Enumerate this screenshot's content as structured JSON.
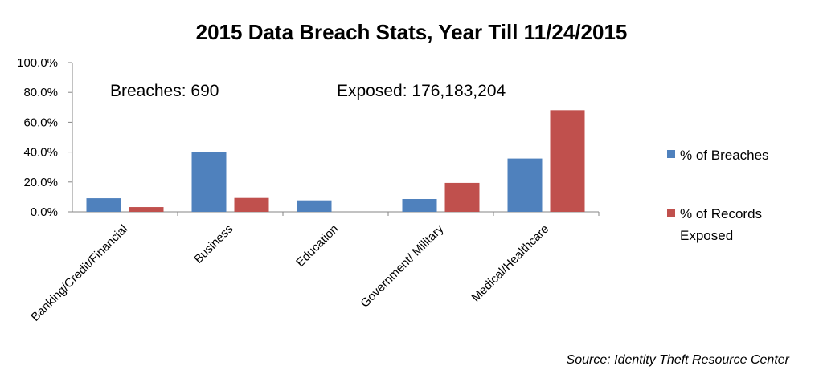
{
  "chart_data": {
    "type": "bar",
    "title": "2015 Data Breach Stats, Year Till 11/24/2015",
    "categories": [
      "Banking/Credit/Financial",
      "Business",
      "Education",
      "Government/ Military",
      "Medical/Healthcare"
    ],
    "series": [
      {
        "name": "% of Breaches",
        "color": "#4f81bd",
        "values": [
          9.1,
          39.9,
          7.7,
          8.6,
          35.7
        ]
      },
      {
        "name": "% of Records Exposed",
        "color": "#c0504d",
        "values": [
          3.2,
          9.3,
          0.0,
          19.4,
          68.1
        ]
      }
    ],
    "y_ticks": [
      "0.0%",
      "20.0%",
      "40.0%",
      "60.0%",
      "80.0%",
      "100.0%"
    ],
    "ylim": [
      0,
      100
    ],
    "grid": false,
    "legend_position": "right",
    "annotations": {
      "breaches": "Breaches: 690",
      "exposed": "Exposed: 176,183,204"
    },
    "source": "Source: Identity Theft Resource Center"
  }
}
